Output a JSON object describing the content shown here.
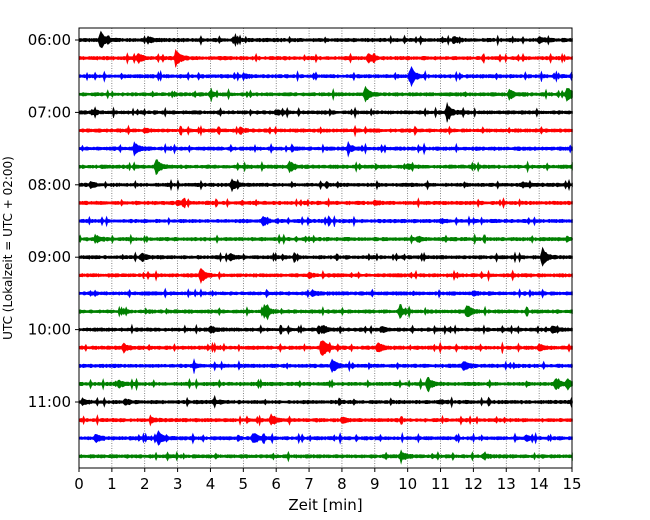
{
  "chart_data": {
    "type": "line",
    "title": "",
    "xlabel": "Zeit  [min]",
    "ylabel": "UTC (Lokalzeit = UTC + 02:00)",
    "xlim": [
      0,
      15
    ],
    "x_ticks": [
      "0",
      "1",
      "2",
      "3",
      "4",
      "5",
      "6",
      "7",
      "8",
      "9",
      "10",
      "11",
      "12",
      "13",
      "14",
      "15"
    ],
    "y_ticks": [
      {
        "label": "06:00",
        "row": 0
      },
      {
        "label": "07:00",
        "row": 4
      },
      {
        "label": "08:00",
        "row": 8
      },
      {
        "label": "09:00",
        "row": 12
      },
      {
        "label": "10:00",
        "row": 16
      },
      {
        "label": "11:00",
        "row": 20
      }
    ],
    "grid": {
      "x": true,
      "y": false
    },
    "trace_colors": [
      "#000000",
      "#ff0000",
      "#0000ff",
      "#008000"
    ],
    "trace_minutes": 15,
    "traces": [
      {
        "start": "06:00",
        "color": "#000000",
        "events": [
          {
            "t": 0.65,
            "amp": 1.0
          },
          {
            "t": 2.1,
            "amp": 0.3
          },
          {
            "t": 4.7,
            "amp": 0.25
          },
          {
            "t": 11.4,
            "amp": 0.35
          },
          {
            "t": 14.0,
            "amp": 0.35
          }
        ]
      },
      {
        "start": "06:15",
        "color": "#ff0000",
        "events": [
          {
            "t": 1.8,
            "amp": 0.5
          },
          {
            "t": 2.95,
            "amp": 0.9
          },
          {
            "t": 8.8,
            "amp": 0.6
          }
        ]
      },
      {
        "start": "06:30",
        "color": "#0000ff",
        "events": [
          {
            "t": 10.1,
            "amp": 1.0
          },
          {
            "t": 5.0,
            "amp": 0.25
          }
        ]
      },
      {
        "start": "06:45",
        "color": "#008000",
        "events": [
          {
            "t": 8.7,
            "amp": 0.8
          },
          {
            "t": 13.1,
            "amp": 0.5
          },
          {
            "t": 14.85,
            "amp": 0.9
          },
          {
            "t": 4.0,
            "amp": 0.25
          }
        ]
      },
      {
        "start": "07:00",
        "color": "#000000",
        "events": [
          {
            "t": 0.4,
            "amp": 0.3
          },
          {
            "t": 11.2,
            "amp": 0.9
          },
          {
            "t": 6.0,
            "amp": 0.2
          }
        ]
      },
      {
        "start": "07:15",
        "color": "#ff0000",
        "events": [
          {
            "t": 4.9,
            "amp": 0.3
          },
          {
            "t": 2.0,
            "amp": 0.2
          }
        ]
      },
      {
        "start": "07:30",
        "color": "#0000ff",
        "events": [
          {
            "t": 1.7,
            "amp": 0.55
          },
          {
            "t": 8.2,
            "amp": 0.5
          }
        ]
      },
      {
        "start": "07:45",
        "color": "#008000",
        "events": [
          {
            "t": 2.35,
            "amp": 0.85
          },
          {
            "t": 6.4,
            "amp": 0.65
          },
          {
            "t": 10.0,
            "amp": 0.25
          }
        ]
      },
      {
        "start": "08:00",
        "color": "#000000",
        "events": [
          {
            "t": 0.35,
            "amp": 0.3
          },
          {
            "t": 4.65,
            "amp": 0.55
          },
          {
            "t": 13.5,
            "amp": 0.2
          }
        ]
      },
      {
        "start": "08:15",
        "color": "#ff0000",
        "events": [
          {
            "t": 3.0,
            "amp": 0.2
          },
          {
            "t": 9.0,
            "amp": 0.2
          }
        ]
      },
      {
        "start": "08:30",
        "color": "#0000ff",
        "events": [
          {
            "t": 5.6,
            "amp": 0.45
          },
          {
            "t": 11.0,
            "amp": 0.2
          }
        ]
      },
      {
        "start": "08:45",
        "color": "#008000",
        "events": [
          {
            "t": 0.55,
            "amp": 0.3
          },
          {
            "t": 10.3,
            "amp": 0.25
          }
        ]
      },
      {
        "start": "09:00",
        "color": "#000000",
        "events": [
          {
            "t": 1.9,
            "amp": 0.45
          },
          {
            "t": 4.6,
            "amp": 0.4
          },
          {
            "t": 14.1,
            "amp": 1.0
          }
        ]
      },
      {
        "start": "09:15",
        "color": "#ff0000",
        "events": [
          {
            "t": 3.7,
            "amp": 1.0
          },
          {
            "t": 7.0,
            "amp": 0.2
          }
        ]
      },
      {
        "start": "09:30",
        "color": "#0000ff",
        "events": [
          {
            "t": 7.1,
            "amp": 0.3
          },
          {
            "t": 12.0,
            "amp": 0.2
          }
        ]
      },
      {
        "start": "09:45",
        "color": "#008000",
        "events": [
          {
            "t": 5.65,
            "amp": 0.8
          },
          {
            "t": 9.75,
            "amp": 0.45
          },
          {
            "t": 11.8,
            "amp": 0.85
          }
        ]
      },
      {
        "start": "10:00",
        "color": "#000000",
        "events": [
          {
            "t": 4.0,
            "amp": 0.35
          },
          {
            "t": 7.4,
            "amp": 0.5
          },
          {
            "t": 9.2,
            "amp": 0.3
          },
          {
            "t": 14.4,
            "amp": 0.4
          }
        ]
      },
      {
        "start": "10:15",
        "color": "#ff0000",
        "events": [
          {
            "t": 1.35,
            "amp": 0.45
          },
          {
            "t": 7.4,
            "amp": 1.0
          },
          {
            "t": 9.1,
            "amp": 0.6
          },
          {
            "t": 14.0,
            "amp": 0.35
          }
        ]
      },
      {
        "start": "10:30",
        "color": "#0000ff",
        "events": [
          {
            "t": 7.7,
            "amp": 0.8
          },
          {
            "t": 11.7,
            "amp": 0.5
          },
          {
            "t": 3.5,
            "amp": 0.25
          }
        ]
      },
      {
        "start": "10:45",
        "color": "#008000",
        "events": [
          {
            "t": 1.2,
            "amp": 0.35
          },
          {
            "t": 10.6,
            "amp": 0.85
          },
          {
            "t": 14.5,
            "amp": 0.55
          },
          {
            "t": 14.85,
            "amp": 0.55
          }
        ]
      },
      {
        "start": "11:00",
        "color": "#000000",
        "events": [
          {
            "t": 0.1,
            "amp": 0.3
          },
          {
            "t": 1.4,
            "amp": 0.3
          },
          {
            "t": 4.1,
            "amp": 0.25
          },
          {
            "t": 11.0,
            "amp": 0.2
          }
        ]
      },
      {
        "start": "11:15",
        "color": "#ff0000",
        "events": [
          {
            "t": 5.85,
            "amp": 0.6
          },
          {
            "t": 2.2,
            "amp": 0.25
          },
          {
            "t": 8.0,
            "amp": 0.25
          }
        ]
      },
      {
        "start": "11:30",
        "color": "#0000ff",
        "events": [
          {
            "t": 0.5,
            "amp": 0.4
          },
          {
            "t": 2.4,
            "amp": 0.75
          },
          {
            "t": 5.3,
            "amp": 0.65
          },
          {
            "t": 13.6,
            "amp": 0.3
          }
        ]
      },
      {
        "start": "11:45",
        "color": "#008000",
        "events": [
          {
            "t": 9.8,
            "amp": 0.55
          },
          {
            "t": 12.3,
            "amp": 0.25
          }
        ]
      }
    ]
  }
}
